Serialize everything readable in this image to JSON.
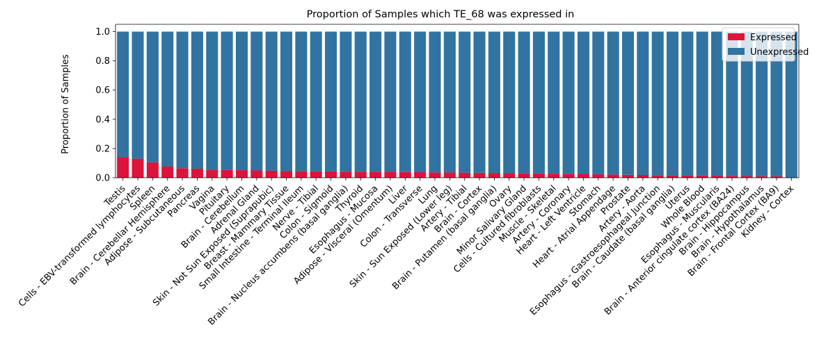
{
  "chart_data": {
    "type": "bar",
    "stacked": true,
    "title": "Proportion of Samples which TE_68 was expressed in",
    "xlabel": "",
    "ylabel": "Proportion of Samples",
    "ylim": [
      0,
      1.05
    ],
    "yticks": [
      "0.0",
      "0.2",
      "0.4",
      "0.6",
      "0.8",
      "1.0"
    ],
    "grid": false,
    "legend_position": "top-right",
    "categories": [
      "Testis",
      "Cells - EBV-transformed lymphocytes",
      "Spleen",
      "Brain - Cerebellar Hemisphere",
      "Adipose - Subcutaneous",
      "Pancreas",
      "Vagina",
      "Pituitary",
      "Brain - Cerebellum",
      "Adrenal Gland",
      "Skin - Not Sun Exposed (Suprapubic)",
      "Breast - Mammary Tissue",
      "Small Intestine - Terminal Ileum",
      "Nerve - Tibial",
      "Colon - Sigmoid",
      "Brain - Nucleus accumbens (basal ganglia)",
      "Thyroid",
      "Esophagus - Mucosa",
      "Adipose - Visceral (Omentum)",
      "Liver",
      "Colon - Transverse",
      "Lung",
      "Skin - Sun Exposed (Lower leg)",
      "Artery - Tibial",
      "Brain - Cortex",
      "Brain - Putamen (basal ganglia)",
      "Ovary",
      "Minor Salivary Gland",
      "Cells - Cultured fibroblasts",
      "Muscle - Skeletal",
      "Artery - Coronary",
      "Heart - Left Ventricle",
      "Stomach",
      "Heart - Atrial Appendage",
      "Prostate",
      "Artery - Aorta",
      "Esophagus - Gastroesophageal Junction",
      "Brain - Caudate (basal ganglia)",
      "Uterus",
      "Whole Blood",
      "Esophagus - Muscularis",
      "Brain - Anterior cingulate cortex (BA24)",
      "Brain - Hippocampus",
      "Brain - Hypothalamus",
      "Brain - Frontal Cortex (BA9)",
      "Kidney - Cortex"
    ],
    "series": [
      {
        "name": "Expressed",
        "color": "#dc143c",
        "values": [
          0.14,
          0.13,
          0.105,
          0.078,
          0.065,
          0.062,
          0.055,
          0.053,
          0.052,
          0.05,
          0.048,
          0.047,
          0.046,
          0.044,
          0.043,
          0.042,
          0.042,
          0.041,
          0.04,
          0.039,
          0.038,
          0.037,
          0.036,
          0.035,
          0.034,
          0.033,
          0.031,
          0.03,
          0.029,
          0.028,
          0.027,
          0.026,
          0.024,
          0.022,
          0.02,
          0.019,
          0.018,
          0.017,
          0.016,
          0.015,
          0.014,
          0.013,
          0.012,
          0.011,
          0.01,
          0.0
        ]
      },
      {
        "name": "Unexpressed",
        "color": "#3274a1",
        "values": [
          0.86,
          0.87,
          0.895,
          0.922,
          0.935,
          0.938,
          0.945,
          0.947,
          0.948,
          0.95,
          0.952,
          0.953,
          0.954,
          0.956,
          0.957,
          0.958,
          0.958,
          0.959,
          0.96,
          0.961,
          0.962,
          0.963,
          0.964,
          0.965,
          0.966,
          0.967,
          0.969,
          0.97,
          0.971,
          0.972,
          0.973,
          0.974,
          0.976,
          0.978,
          0.98,
          0.981,
          0.982,
          0.983,
          0.984,
          0.985,
          0.986,
          0.987,
          0.988,
          0.989,
          0.99,
          1.0
        ]
      }
    ]
  }
}
